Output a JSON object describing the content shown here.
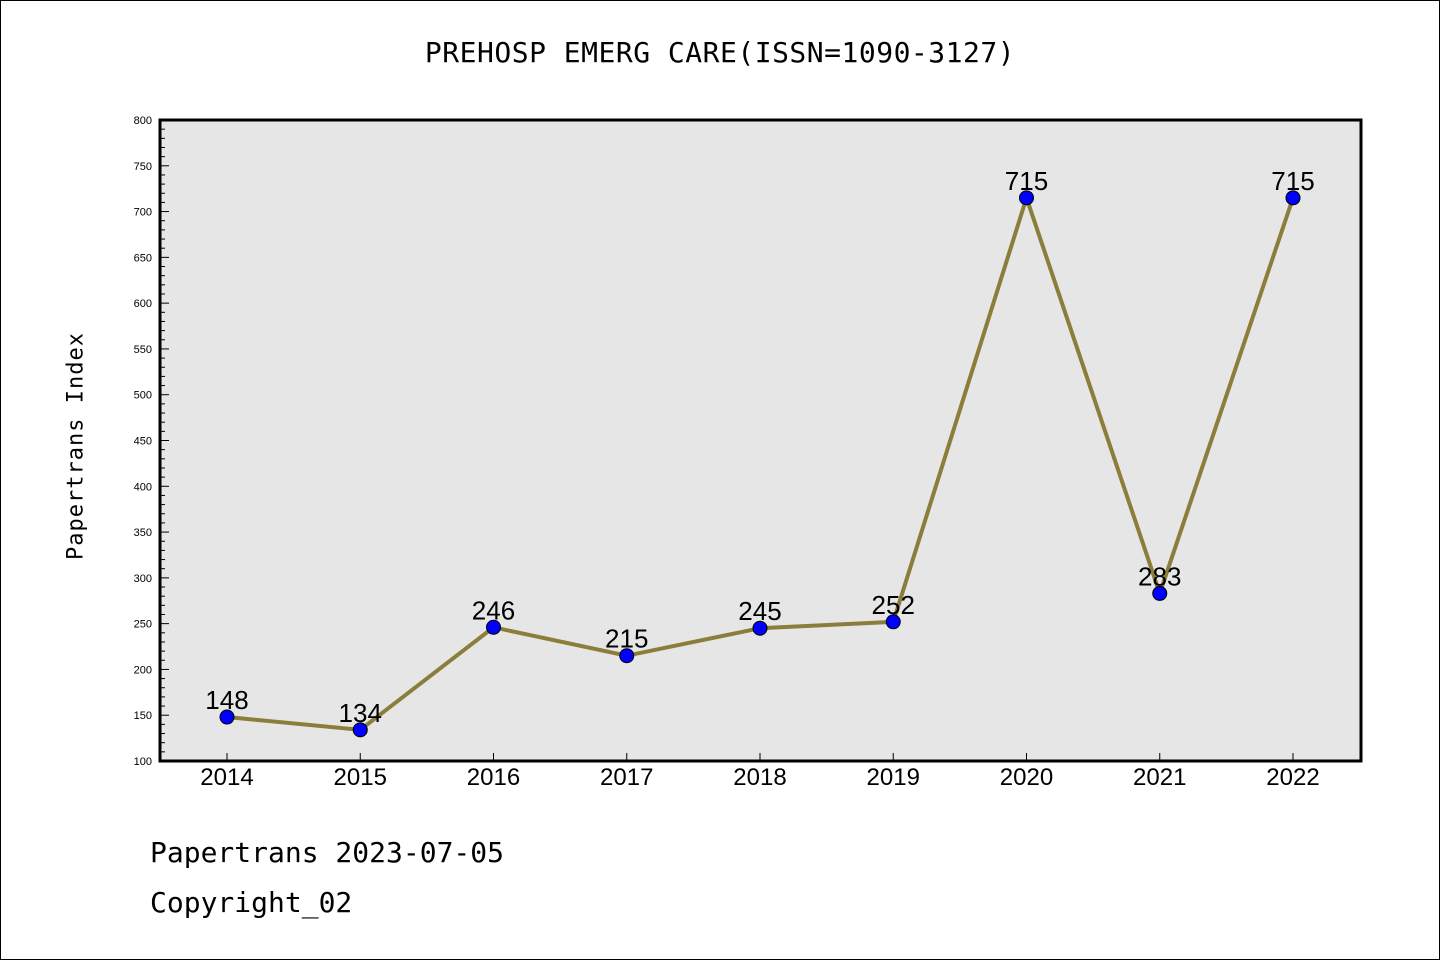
{
  "footer": {
    "date_line": "Papertrans 2023-07-05",
    "copyright": "Copyright_02"
  },
  "colors": {
    "plot_background": "#e6e6e6",
    "line": "#8b7d3a",
    "marker": "#0000ff"
  },
  "chart_data": {
    "type": "line",
    "title": "PREHOSP EMERG CARE(ISSN=1090-3127)",
    "xlabel": "",
    "ylabel": "Papertrans Index",
    "categories": [
      "2014",
      "2015",
      "2016",
      "2017",
      "2018",
      "2019",
      "2020",
      "2021",
      "2022"
    ],
    "series": [
      {
        "values": [
          148,
          134,
          246,
          215,
          245,
          252,
          715,
          283,
          715
        ]
      }
    ],
    "data_labels": [
      "148",
      "134",
      "246",
      "215",
      "245",
      "252",
      "715",
      "283",
      "715"
    ],
    "ylim": [
      100,
      800
    ],
    "yticks": [
      "100",
      "150",
      "200",
      "250",
      "300",
      "350",
      "400",
      "450",
      "500",
      "550",
      "600",
      "650",
      "700",
      "750",
      "800"
    ],
    "grid": false,
    "legend": "none"
  }
}
